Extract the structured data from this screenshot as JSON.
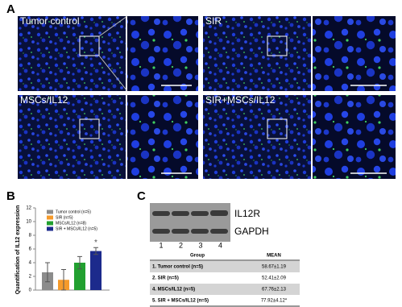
{
  "panel_labels": [
    "A",
    "B",
    "C"
  ],
  "panel_a": {
    "images": [
      "Tumor control",
      "SIR",
      "MSCs/IL12",
      "SIR+MSCs/IL12"
    ]
  },
  "chart_data": {
    "type": "bar",
    "y_label": "Quantification of IL12 expression",
    "categories": [
      null
    ],
    "series": [
      {
        "name": "Tumor control (n=5)",
        "color": "#8c8c8c",
        "values": [
          2.6
        ],
        "errors": [
          1.4
        ]
      },
      {
        "name": "SIR (n=5)",
        "color": "#f59a2a",
        "values": [
          1.5
        ],
        "errors": [
          1.5
        ]
      },
      {
        "name": "MSCs/IL12 (n=8)",
        "color": "#22a030",
        "values": [
          4.0
        ],
        "errors": [
          0.9
        ]
      },
      {
        "name": "SIR + MSCs/IL12 (n=5)",
        "color": "#1c2a8c",
        "values": [
          5.7
        ],
        "errors": [
          0.5
        ],
        "annotation": "*"
      }
    ],
    "ylim": [
      0,
      12
    ],
    "yticks": [
      0,
      2,
      4,
      6,
      8,
      10,
      12
    ],
    "legend": "upper left"
  },
  "panel_c": {
    "blot_labels": [
      "IL12R",
      "GAPDH"
    ],
    "lanes": [
      "1",
      "2",
      "3",
      "4"
    ],
    "table": {
      "header": [
        "Group",
        "MEAN"
      ],
      "rows": [
        [
          "1. Tumor control (n=5)",
          "58.67±1.19"
        ],
        [
          "2. SIR (n=5)",
          "52.41±2.09"
        ],
        [
          "4. MSCs/IL12 (n=5)",
          "67.76±2.13"
        ],
        [
          "5. SIR + MSCs/IL12 (n=5)",
          "77.92±4.12*"
        ]
      ]
    }
  }
}
